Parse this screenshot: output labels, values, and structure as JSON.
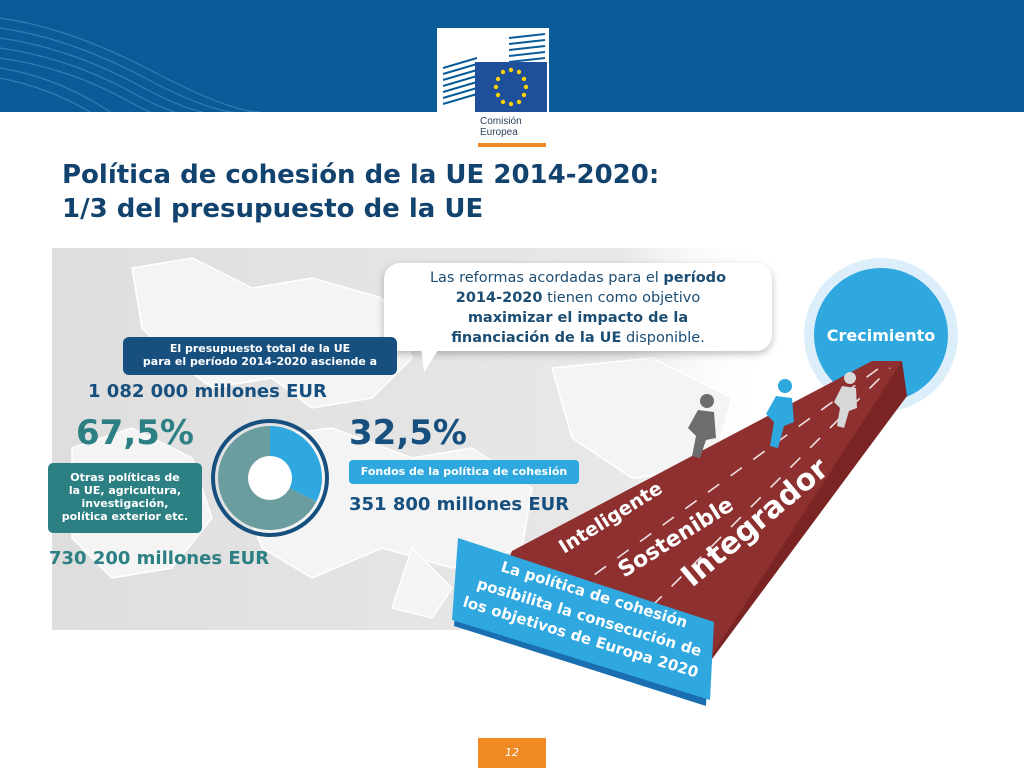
{
  "logo": {
    "line1": "Comisión",
    "line2": "Europea"
  },
  "title": {
    "line1": "Política de cohesión de la UE 2014-2020:",
    "line2": "1/3 del presupuesto de la UE"
  },
  "bubble": {
    "p1": "Las reformas acordadas para el ",
    "b1": "período",
    "b2": "2014-2020",
    "p2": " tienen como objetivo",
    "b3": "maximizar el impacto de la",
    "b4": "financiación de la UE",
    "p3": " disponible."
  },
  "budget_label": {
    "line1": "El presupuesto total de la UE",
    "line2": "para el período 2014-2020 asciende a"
  },
  "total_amount": "1 082 000 millones EUR",
  "other_pct": "67,5%",
  "cohesion_pct": "32,5%",
  "other_label": {
    "line1": "Otras políticas de",
    "line2": "la UE, agricultura,",
    "line3": "investigación,",
    "line4": "política exterior etc."
  },
  "other_amount": "730 200 millones EUR",
  "cohesion_label": "Fondos de la política de cohesión",
  "cohesion_amount": "351 800 millones EUR",
  "growth": "Crecimiento",
  "track_words": {
    "w1": "Inteligente",
    "w2": "Sostenible",
    "w3": "Integrador"
  },
  "banner": {
    "line1": "La política de cohesión",
    "line2": "posibilita la consecución de",
    "line3": "los objetivos de Europa 2020"
  },
  "page_number": "12",
  "shares": {
    "cohesion": 0.325,
    "other": 0.675
  },
  "colors": {
    "header": "#0a5c98",
    "navy": "#17507f",
    "teal": "#2c8083",
    "sky": "#2fa7df",
    "orange": "#f08a24",
    "track": "#8b2e2e"
  }
}
